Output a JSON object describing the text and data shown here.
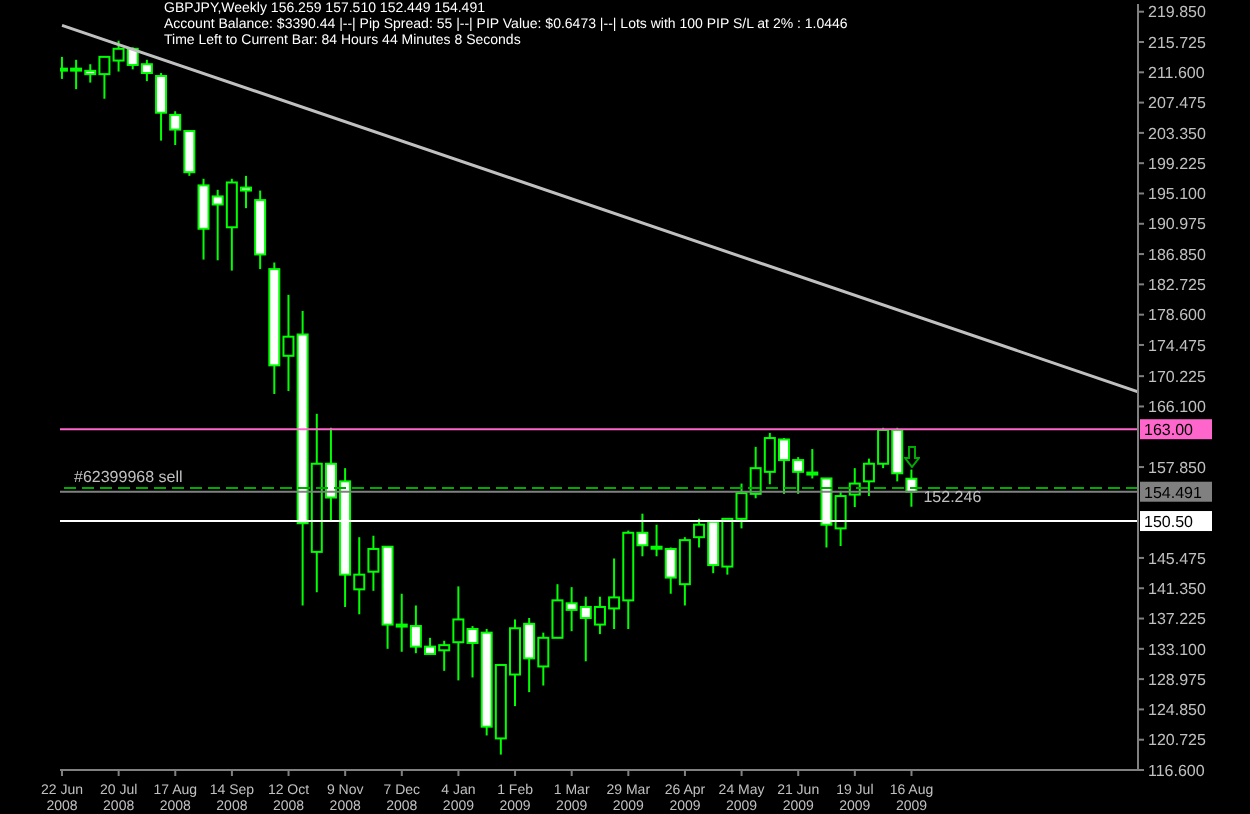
{
  "chart_data": {
    "type": "candlestick",
    "title": "GBPJPY,Weekly 156.259 157.510 152.449 154.491",
    "annotations": [
      "Account Balance: $3390.44 |--| Pip Spread: 55 |--| PIP Value: $0.6473 |--| Lots with 100 PIP S/L at 2% : 1.0446",
      "Time Left to Current Bar: 84 Hours 44 Minutes 8 Seconds",
      {
        "text": "#62399968 sell",
        "x": "2008-06-22",
        "y": 155.0
      },
      {
        "text": "152.246",
        "x": "2009-08-16",
        "y": 152.246
      }
    ],
    "color": "#00ff00",
    "x": [
      "2008-06-22",
      "2008-06-29",
      "2008-07-06",
      "2008-07-13",
      "2008-07-20",
      "2008-07-27",
      "2008-08-03",
      "2008-08-10",
      "2008-08-17",
      "2008-08-24",
      "2008-08-31",
      "2008-09-07",
      "2008-09-14",
      "2008-09-21",
      "2008-09-28",
      "2008-10-05",
      "2008-10-12",
      "2008-10-19",
      "2008-10-26",
      "2008-11-02",
      "2008-11-09",
      "2008-11-16",
      "2008-11-23",
      "2008-11-30",
      "2008-12-07",
      "2008-12-14",
      "2008-12-21",
      "2008-12-28",
      "2009-01-04",
      "2009-01-11",
      "2009-01-18",
      "2009-01-25",
      "2009-02-01",
      "2009-02-08",
      "2009-02-15",
      "2009-02-22",
      "2009-03-01",
      "2009-03-08",
      "2009-03-15",
      "2009-03-22",
      "2009-03-29",
      "2009-04-05",
      "2009-04-12",
      "2009-04-19",
      "2009-04-26",
      "2009-05-03",
      "2009-05-10",
      "2009-05-17",
      "2009-05-24",
      "2009-05-31",
      "2009-06-07",
      "2009-06-14",
      "2009-06-21",
      "2009-06-28",
      "2009-07-05",
      "2009-07-12",
      "2009-07-19",
      "2009-07-26",
      "2009-08-02",
      "2009-08-09",
      "2009-08-16"
    ],
    "ohlc": [
      [
        212.0,
        213.7,
        210.7,
        212.1
      ],
      [
        212.0,
        213.3,
        209.3,
        212.1
      ],
      [
        211.8,
        212.7,
        210.2,
        211.35
      ],
      [
        211.35,
        213.7,
        208.0,
        213.7
      ],
      [
        213.2,
        215.9,
        211.7,
        214.8
      ],
      [
        214.8,
        215.0,
        212.0,
        212.6
      ],
      [
        212.7,
        213.3,
        210.4,
        211.5
      ],
      [
        211.1,
        211.5,
        202.3,
        206.1
      ],
      [
        205.8,
        206.3,
        201.7,
        203.8
      ],
      [
        203.6,
        203.6,
        197.5,
        198.0
      ],
      [
        196.2,
        197.1,
        186.1,
        190.3
      ],
      [
        194.7,
        195.6,
        186.0,
        193.6
      ],
      [
        190.5,
        197.1,
        184.6,
        196.6
      ],
      [
        195.9,
        197.5,
        193.1,
        195.5
      ],
      [
        194.2,
        195.5,
        184.8,
        186.8
      ],
      [
        184.8,
        185.7,
        167.8,
        171.7
      ],
      [
        173.0,
        181.3,
        168.2,
        175.6
      ],
      [
        175.9,
        179.1,
        139.0,
        150.2
      ],
      [
        146.3,
        165.1,
        140.8,
        158.3
      ],
      [
        158.3,
        163.2,
        150.4,
        153.7
      ],
      [
        155.9,
        157.7,
        138.8,
        143.2
      ],
      [
        141.2,
        148.3,
        137.8,
        143.2
      ],
      [
        143.6,
        148.5,
        141.0,
        146.7
      ],
      [
        147.0,
        147.0,
        133.1,
        136.4
      ],
      [
        136.4,
        140.6,
        132.7,
        136.3
      ],
      [
        136.2,
        139.0,
        132.5,
        133.4
      ],
      [
        133.4,
        134.6,
        132.3,
        132.4
      ],
      [
        132.9,
        134.2,
        130.1,
        133.6
      ],
      [
        134.0,
        141.6,
        128.8,
        137.1
      ],
      [
        135.8,
        136.2,
        129.2,
        133.9
      ],
      [
        135.3,
        135.8,
        121.3,
        122.5
      ],
      [
        120.9,
        130.9,
        118.7,
        130.9
      ],
      [
        129.6,
        137.1,
        125.3,
        135.9
      ],
      [
        136.5,
        137.3,
        127.2,
        131.8
      ],
      [
        130.7,
        135.3,
        128.1,
        134.6
      ],
      [
        134.6,
        141.9,
        134.6,
        139.7
      ],
      [
        139.3,
        141.5,
        135.5,
        138.4
      ],
      [
        138.8,
        140.2,
        131.4,
        137.3
      ],
      [
        136.4,
        140.2,
        135.1,
        138.8
      ],
      [
        138.6,
        145.4,
        135.8,
        140.1
      ],
      [
        139.7,
        149.2,
        135.8,
        148.9
      ],
      [
        148.9,
        151.5,
        145.7,
        147.2
      ],
      [
        147.0,
        150.0,
        145.7,
        146.9
      ],
      [
        146.7,
        146.9,
        140.6,
        142.8
      ],
      [
        141.9,
        148.3,
        139.0,
        147.9
      ],
      [
        148.3,
        150.8,
        146.9,
        150.0
      ],
      [
        150.4,
        150.6,
        143.4,
        144.5
      ],
      [
        144.3,
        150.8,
        143.2,
        150.8
      ],
      [
        150.8,
        155.6,
        149.5,
        154.3
      ],
      [
        154.2,
        160.6,
        153.6,
        157.7
      ],
      [
        157.2,
        162.5,
        155.5,
        161.8
      ],
      [
        161.6,
        161.8,
        154.2,
        158.8
      ],
      [
        158.8,
        159.2,
        154.2,
        157.2
      ],
      [
        157.1,
        160.3,
        156.3,
        157.0
      ],
      [
        156.3,
        156.3,
        146.9,
        150.0
      ],
      [
        149.5,
        154.6,
        147.1,
        153.9
      ],
      [
        154.1,
        157.7,
        152.4,
        155.6
      ],
      [
        155.9,
        159.0,
        153.9,
        158.3
      ],
      [
        158.3,
        163.2,
        157.7,
        162.9
      ],
      [
        162.9,
        163.2,
        155.9,
        157.0
      ],
      [
        156.259,
        157.51,
        152.449,
        154.491
      ]
    ],
    "series": [
      {
        "type": "line",
        "color": "#c0c0c0",
        "x": [
          "2008-06-22",
          "2009-12-06"
        ],
        "values": [
          218.0,
          168.1
        ]
      }
    ],
    "ref_lines": [
      {
        "axis": "y",
        "value": 163.0,
        "label": "163.00",
        "color": "#ff66cc"
      },
      {
        "axis": "y",
        "value": 155.0,
        "color": "#00aa00",
        "line_style": "dashed"
      },
      {
        "axis": "y",
        "value": 154.491,
        "label": "154.491",
        "color": "#808080"
      },
      {
        "axis": "y",
        "value": 150.5,
        "label": "150.50",
        "color": "#ffffff"
      }
    ],
    "xlim": [
      "2008-06-21",
      "2009-12-06"
    ],
    "xticks": [
      {
        "value": "2008-06-22",
        "label": "22 Jun 2008"
      },
      {
        "value": "2008-07-20",
        "label": "20 Jul 2008"
      },
      {
        "value": "2008-08-17",
        "label": "17 Aug 2008"
      },
      {
        "value": "2008-09-14",
        "label": "14 Sep 2008"
      },
      {
        "value": "2008-10-12",
        "label": "12 Oct 2008"
      },
      {
        "value": "2008-11-09",
        "label": "9 Nov 2008"
      },
      {
        "value": "2008-12-07",
        "label": "7 Dec 2008"
      },
      {
        "value": "2009-01-04",
        "label": "4 Jan 2009"
      },
      {
        "value": "2009-02-01",
        "label": "1 Feb 2009"
      },
      {
        "value": "2009-03-01",
        "label": "1 Mar 2009"
      },
      {
        "value": "2009-03-29",
        "label": "29 Mar 2009"
      },
      {
        "value": "2009-04-26",
        "label": "26 Apr 2009"
      },
      {
        "value": "2009-05-24",
        "label": "24 May 2009"
      },
      {
        "value": "2009-06-21",
        "label": "21 Jun 2009"
      },
      {
        "value": "2009-07-19",
        "label": "19 Jul 2009"
      },
      {
        "value": "2009-08-16",
        "label": "16 Aug 2009"
      }
    ],
    "ylim": [
      116.6,
      220.9
    ],
    "yticks": [
      {
        "value": 219.85,
        "label": "219.850"
      },
      {
        "value": 215.725,
        "label": "215.725"
      },
      {
        "value": 211.6,
        "label": "211.600"
      },
      {
        "value": 207.475,
        "label": "207.475"
      },
      {
        "value": 203.35,
        "label": "203.350"
      },
      {
        "value": 199.225,
        "label": "199.225"
      },
      {
        "value": 195.1,
        "label": "195.100"
      },
      {
        "value": 190.975,
        "label": "190.975"
      },
      {
        "value": 186.85,
        "label": "186.850"
      },
      {
        "value": 182.725,
        "label": "182.725"
      },
      {
        "value": 178.6,
        "label": "178.600"
      },
      {
        "value": 174.475,
        "label": "174.475"
      },
      {
        "value": 170.225,
        "label": "170.225"
      },
      {
        "value": 166.1,
        "label": "166.100"
      },
      {
        "value": 157.85,
        "label": "157.850"
      },
      {
        "value": 145.475,
        "label": "145.475"
      },
      {
        "value": 141.35,
        "label": "141.350"
      },
      {
        "value": 137.225,
        "label": "137.225"
      },
      {
        "value": 133.1,
        "label": "133.100"
      },
      {
        "value": 128.975,
        "label": "128.975"
      },
      {
        "value": 124.85,
        "label": "124.850"
      },
      {
        "value": 120.725,
        "label": "120.725"
      },
      {
        "value": 116.6,
        "label": "116.600"
      }
    ]
  }
}
